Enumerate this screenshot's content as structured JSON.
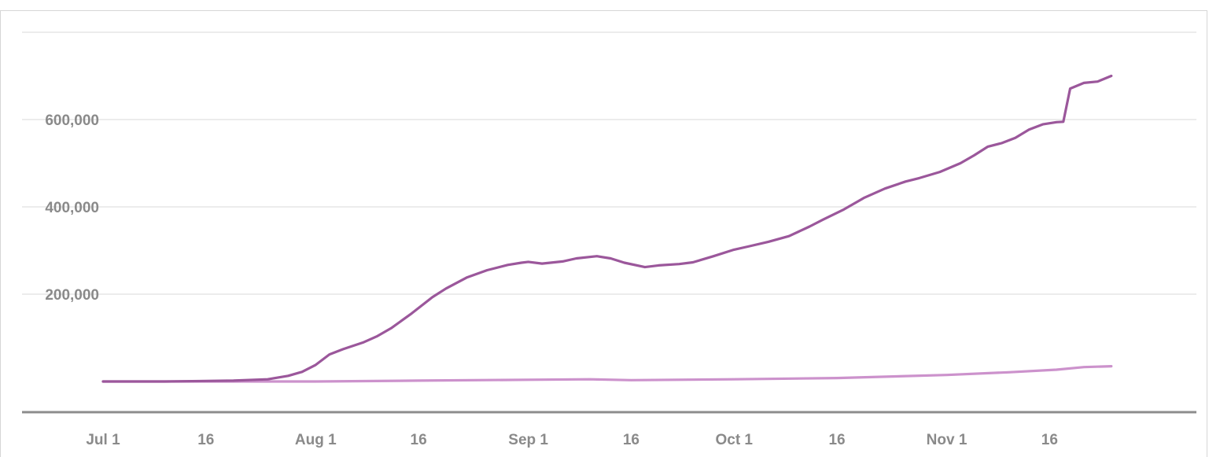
{
  "chart_data": {
    "type": "line",
    "title": "",
    "xlabel": "",
    "ylabel": "",
    "x_tick_labels": [
      "Jul 1",
      "16",
      "Aug 1",
      "16",
      "Sep 1",
      "16",
      "Oct 1",
      "16",
      "Nov 1",
      "16"
    ],
    "y_tick_labels": [
      "200,000",
      "400,000",
      "600,000"
    ],
    "y_ticks": [
      200000,
      400000,
      600000
    ],
    "ylim": [
      0,
      800000
    ],
    "xlim": [
      "2020-07-01",
      "2020-12-20"
    ],
    "grid": true,
    "legend": "none",
    "colors": {
      "series_upper": "#9b579b",
      "series_lower": "#cc92cc",
      "grid": "#e6e6e6",
      "baseline": "#8c8c8c",
      "tick_text": "#8a8a8a"
    },
    "series": [
      {
        "x": [
          "2020-07-01",
          "2020-07-10",
          "2020-07-20",
          "2020-07-25",
          "2020-07-28",
          "2020-07-30",
          "2020-08-01",
          "2020-08-03",
          "2020-08-05",
          "2020-08-08",
          "2020-08-10",
          "2020-08-12",
          "2020-08-15",
          "2020-08-18",
          "2020-08-20",
          "2020-08-23",
          "2020-08-26",
          "2020-08-29",
          "2020-08-31",
          "2020-09-01",
          "2020-09-03",
          "2020-09-06",
          "2020-09-08",
          "2020-09-11",
          "2020-09-13",
          "2020-09-15",
          "2020-09-18",
          "2020-09-20",
          "2020-09-23",
          "2020-09-25",
          "2020-09-28",
          "2020-10-01",
          "2020-10-03",
          "2020-10-06",
          "2020-10-09",
          "2020-10-12",
          "2020-10-14",
          "2020-10-17",
          "2020-10-20",
          "2020-10-23",
          "2020-10-26",
          "2020-10-28",
          "2020-10-31",
          "2020-11-03",
          "2020-11-05",
          "2020-11-07",
          "2020-11-09",
          "2020-11-11",
          "2020-11-13",
          "2020-11-15",
          "2020-11-17",
          "2020-11-18",
          "2020-11-19",
          "2020-11-21",
          "2020-11-23",
          "2020-11-25"
        ],
        "values": [
          0,
          0,
          2000,
          5000,
          13000,
          22000,
          38000,
          62000,
          74000,
          90000,
          104000,
          122000,
          156000,
          193000,
          213000,
          238000,
          255000,
          267000,
          272000,
          274000,
          270000,
          275000,
          282000,
          287000,
          282000,
          272000,
          262000,
          266000,
          269000,
          273000,
          287000,
          302000,
          309000,
          320000,
          333000,
          355000,
          371000,
          394000,
          421000,
          442000,
          458000,
          466000,
          480000,
          500000,
          518000,
          538000,
          546000,
          558000,
          577000,
          589000,
          594000,
          595000,
          671000,
          684000,
          687000,
          700000
        ]
      },
      {
        "x": [
          "2020-07-01",
          "2020-07-15",
          "2020-08-01",
          "2020-08-16",
          "2020-09-01",
          "2020-09-10",
          "2020-09-16",
          "2020-10-01",
          "2020-10-16",
          "2020-11-01",
          "2020-11-10",
          "2020-11-17",
          "2020-11-21",
          "2020-11-25"
        ],
        "values": [
          0,
          0,
          0,
          2000,
          4000,
          5000,
          3000,
          5000,
          8000,
          15000,
          21000,
          27000,
          33000,
          35000
        ]
      }
    ]
  }
}
